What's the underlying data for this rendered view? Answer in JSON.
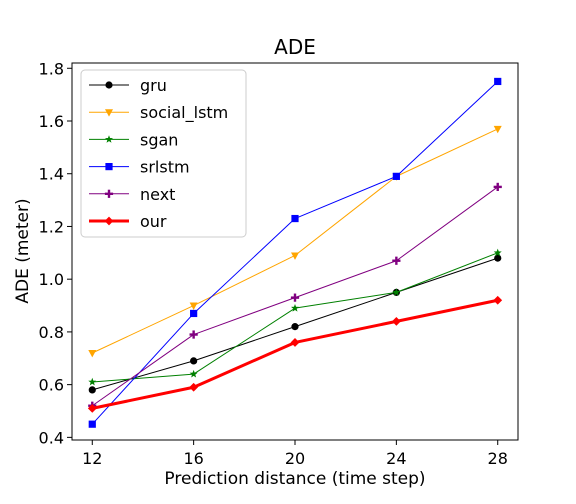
{
  "chart_data": {
    "type": "line",
    "title": "ADE",
    "xlabel": "Prediction distance (time step)",
    "ylabel": "ADE (meter)",
    "x": [
      12,
      16,
      20,
      24,
      28
    ],
    "xlim": [
      11.2,
      28.8
    ],
    "ylim": [
      0.39,
      1.82
    ],
    "xticks": [
      "12",
      "16",
      "20",
      "24",
      "28"
    ],
    "yticks": [
      "0.4",
      "0.6",
      "0.8",
      "1.0",
      "1.2",
      "1.4",
      "1.6",
      "1.8"
    ],
    "grid": false,
    "legend_position": "top-left",
    "series": [
      {
        "name": "gru",
        "color": "#000000",
        "marker": "circle",
        "values": [
          0.58,
          0.69,
          0.82,
          0.95,
          1.08
        ]
      },
      {
        "name": "social_lstm",
        "color": "#ffa500",
        "marker": "triangle-down",
        "values": [
          0.72,
          0.9,
          1.09,
          1.39,
          1.57
        ]
      },
      {
        "name": "sgan",
        "color": "#008000",
        "marker": "star",
        "values": [
          0.61,
          0.64,
          0.89,
          0.95,
          1.1
        ]
      },
      {
        "name": "srlstm",
        "color": "#0000ff",
        "marker": "square",
        "values": [
          0.45,
          0.87,
          1.23,
          1.39,
          1.75
        ]
      },
      {
        "name": "next",
        "color": "#800080",
        "marker": "plus",
        "values": [
          0.52,
          0.79,
          0.93,
          1.07,
          1.35
        ]
      },
      {
        "name": "our",
        "color": "#ff0000",
        "marker": "diamond",
        "values": [
          0.51,
          0.59,
          0.76,
          0.84,
          0.92
        ]
      }
    ]
  }
}
